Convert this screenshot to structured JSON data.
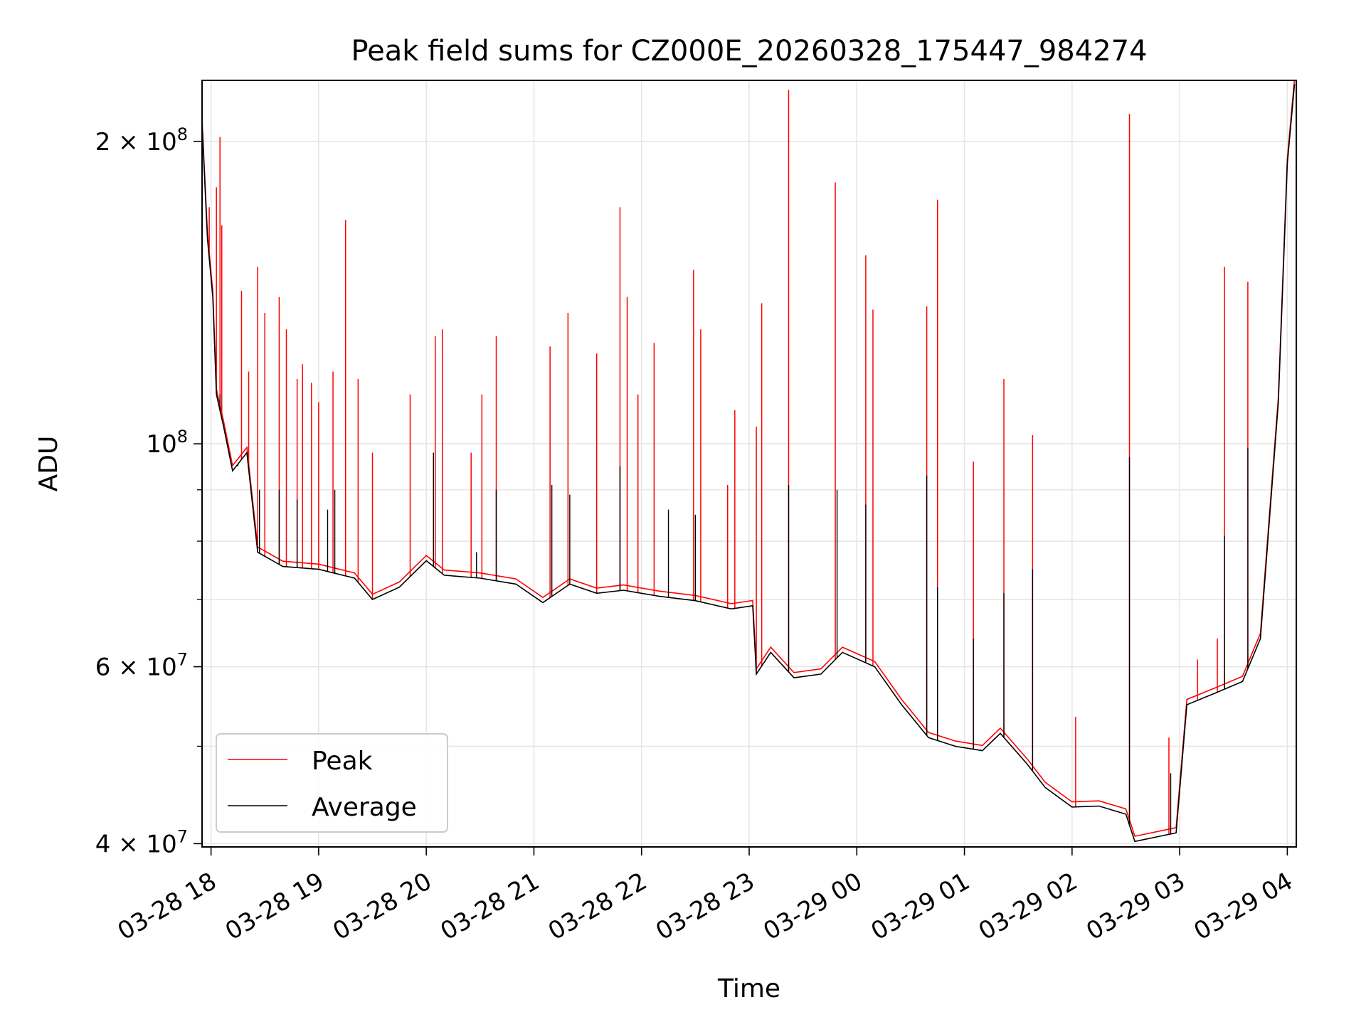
{
  "chart_data": {
    "type": "line",
    "title": "Peak field sums for CZ000E_20260328_175447_984274",
    "xlabel": "Time",
    "ylabel": "ADU",
    "y_scale": "log",
    "ylim": [
      39700000,
      230000000
    ],
    "xlim": [
      "2026-03-28T17:55:00",
      "2026-03-29T04:05:00"
    ],
    "x_ticks": [
      {
        "t": "2026-03-28T18:00",
        "label": "03-28 18"
      },
      {
        "t": "2026-03-28T19:00",
        "label": "03-28 19"
      },
      {
        "t": "2026-03-28T20:00",
        "label": "03-28 20"
      },
      {
        "t": "2026-03-28T21:00",
        "label": "03-28 21"
      },
      {
        "t": "2026-03-28T22:00",
        "label": "03-28 22"
      },
      {
        "t": "2026-03-28T23:00",
        "label": "03-28 23"
      },
      {
        "t": "2026-03-29T00:00",
        "label": "03-29 00"
      },
      {
        "t": "2026-03-29T01:00",
        "label": "03-29 01"
      },
      {
        "t": "2026-03-29T02:00",
        "label": "03-29 02"
      },
      {
        "t": "2026-03-29T03:00",
        "label": "03-29 03"
      },
      {
        "t": "2026-03-29T04:00",
        "label": "03-29 04"
      }
    ],
    "y_ticks": [
      {
        "value": 40000000,
        "base": "4 × 10",
        "exp": "7"
      },
      {
        "value": 60000000,
        "base": "6 × 10",
        "exp": "7"
      },
      {
        "value": 100000000,
        "base": "10",
        "exp": "8"
      },
      {
        "value": 200000000,
        "base": "2 × 10",
        "exp": "8"
      }
    ],
    "y_minor_ticks": [
      50000000,
      70000000,
      80000000,
      90000000
    ],
    "grid": true,
    "legend_position": "lower-left",
    "series": [
      {
        "name": "Average",
        "color": "#000000",
        "points": [
          [
            "2026-03-28T17:55",
            208000000
          ],
          [
            "2026-03-28T17:58",
            160000000
          ],
          [
            "2026-03-28T18:01",
            140000000
          ],
          [
            "2026-03-28T18:03",
            112000000
          ],
          [
            "2026-03-28T18:07",
            104000000
          ],
          [
            "2026-03-28T18:12",
            94000000
          ],
          [
            "2026-03-28T18:20",
            98000000
          ],
          [
            "2026-03-28T18:26",
            78000000
          ],
          [
            "2026-03-28T18:40",
            75500000
          ],
          [
            "2026-03-28T19:00",
            75000000
          ],
          [
            "2026-03-28T19:20",
            73500000
          ],
          [
            "2026-03-28T19:30",
            70000000
          ],
          [
            "2026-03-28T19:45",
            72000000
          ],
          [
            "2026-03-28T20:00",
            76500000
          ],
          [
            "2026-03-28T20:10",
            74000000
          ],
          [
            "2026-03-28T20:30",
            73500000
          ],
          [
            "2026-03-28T20:50",
            72500000
          ],
          [
            "2026-03-28T21:05",
            69500000
          ],
          [
            "2026-03-28T21:20",
            72500000
          ],
          [
            "2026-03-28T21:35",
            71000000
          ],
          [
            "2026-03-28T21:50",
            71500000
          ],
          [
            "2026-03-28T22:10",
            70500000
          ],
          [
            "2026-03-28T22:30",
            69800000
          ],
          [
            "2026-03-28T22:50",
            68500000
          ],
          [
            "2026-03-28T23:02",
            69000000
          ],
          [
            "2026-03-28T23:04",
            59000000
          ],
          [
            "2026-03-28T23:12",
            62000000
          ],
          [
            "2026-03-28T23:25",
            58500000
          ],
          [
            "2026-03-28T23:40",
            59000000
          ],
          [
            "2026-03-28T23:52",
            62000000
          ],
          [
            "2026-03-29T00:10",
            60000000
          ],
          [
            "2026-03-29T00:25",
            55000000
          ],
          [
            "2026-03-29T00:40",
            51000000
          ],
          [
            "2026-03-29T00:55",
            50000000
          ],
          [
            "2026-03-29T01:10",
            49500000
          ],
          [
            "2026-03-29T01:20",
            51500000
          ],
          [
            "2026-03-29T01:35",
            48000000
          ],
          [
            "2026-03-29T01:45",
            45500000
          ],
          [
            "2026-03-29T02:00",
            43500000
          ],
          [
            "2026-03-29T02:15",
            43600000
          ],
          [
            "2026-03-29T02:30",
            42800000
          ],
          [
            "2026-03-29T02:35",
            40200000
          ],
          [
            "2026-03-29T02:58",
            41000000
          ],
          [
            "2026-03-29T03:04",
            55000000
          ],
          [
            "2026-03-29T03:20",
            56500000
          ],
          [
            "2026-03-29T03:35",
            58000000
          ],
          [
            "2026-03-29T03:45",
            64000000
          ],
          [
            "2026-03-29T03:55",
            110000000
          ],
          [
            "2026-03-29T04:00",
            190000000
          ],
          [
            "2026-03-29T04:04",
            228000000
          ]
        ],
        "spikes": [
          [
            "2026-03-28T18:05",
            112000000
          ],
          [
            "2026-03-28T18:15",
            95000000
          ],
          [
            "2026-03-28T18:27",
            90000000
          ],
          [
            "2026-03-28T18:38",
            90000000
          ],
          [
            "2026-03-28T18:48",
            88000000
          ],
          [
            "2026-03-28T19:05",
            86000000
          ],
          [
            "2026-03-28T19:09",
            90000000
          ],
          [
            "2026-03-28T20:04",
            98000000
          ],
          [
            "2026-03-28T20:28",
            78000000
          ],
          [
            "2026-03-28T20:39",
            90000000
          ],
          [
            "2026-03-28T21:10",
            91000000
          ],
          [
            "2026-03-28T21:20",
            89000000
          ],
          [
            "2026-03-28T21:48",
            95000000
          ],
          [
            "2026-03-28T22:15",
            86000000
          ],
          [
            "2026-03-28T22:30",
            85000000
          ],
          [
            "2026-03-28T23:22",
            91000000
          ],
          [
            "2026-03-28T23:49",
            90000000
          ],
          [
            "2026-03-29T00:05",
            87000000
          ],
          [
            "2026-03-29T00:39",
            93000000
          ],
          [
            "2026-03-29T00:45",
            72000000
          ],
          [
            "2026-03-29T01:05",
            64000000
          ],
          [
            "2026-03-29T01:22",
            71000000
          ],
          [
            "2026-03-29T01:38",
            75000000
          ],
          [
            "2026-03-29T02:32",
            97000000
          ],
          [
            "2026-03-29T02:55",
            47000000
          ],
          [
            "2026-03-29T03:25",
            81000000
          ],
          [
            "2026-03-29T03:38",
            99000000
          ]
        ]
      },
      {
        "name": "Peak",
        "color": "#ff0000",
        "spikes": [
          [
            "2026-03-28T17:59",
            172000000
          ],
          [
            "2026-03-28T18:03",
            180000000
          ],
          [
            "2026-03-28T18:05",
            202000000
          ],
          [
            "2026-03-28T18:06",
            165000000
          ],
          [
            "2026-03-28T18:17",
            142000000
          ],
          [
            "2026-03-28T18:21",
            118000000
          ],
          [
            "2026-03-28T18:26",
            150000000
          ],
          [
            "2026-03-28T18:30",
            135000000
          ],
          [
            "2026-03-28T18:38",
            140000000
          ],
          [
            "2026-03-28T18:42",
            130000000
          ],
          [
            "2026-03-28T18:48",
            116000000
          ],
          [
            "2026-03-28T18:51",
            120000000
          ],
          [
            "2026-03-28T18:56",
            115000000
          ],
          [
            "2026-03-28T19:00",
            110000000
          ],
          [
            "2026-03-28T19:08",
            118000000
          ],
          [
            "2026-03-28T19:15",
            167000000
          ],
          [
            "2026-03-28T19:22",
            116000000
          ],
          [
            "2026-03-28T19:30",
            98000000
          ],
          [
            "2026-03-28T19:51",
            112000000
          ],
          [
            "2026-03-28T20:05",
            128000000
          ],
          [
            "2026-03-28T20:09",
            130000000
          ],
          [
            "2026-03-28T20:25",
            98000000
          ],
          [
            "2026-03-28T20:31",
            112000000
          ],
          [
            "2026-03-28T20:39",
            128000000
          ],
          [
            "2026-03-28T21:09",
            125000000
          ],
          [
            "2026-03-28T21:19",
            135000000
          ],
          [
            "2026-03-28T21:35",
            123000000
          ],
          [
            "2026-03-28T21:48",
            172000000
          ],
          [
            "2026-03-28T21:52",
            140000000
          ],
          [
            "2026-03-28T21:58",
            112000000
          ],
          [
            "2026-03-28T22:07",
            126000000
          ],
          [
            "2026-03-28T22:29",
            149000000
          ],
          [
            "2026-03-28T22:33",
            130000000
          ],
          [
            "2026-03-28T22:48",
            91000000
          ],
          [
            "2026-03-28T22:52",
            108000000
          ],
          [
            "2026-03-28T23:04",
            104000000
          ],
          [
            "2026-03-28T23:07",
            138000000
          ],
          [
            "2026-03-28T23:22",
            225000000
          ],
          [
            "2026-03-28T23:48",
            182000000
          ],
          [
            "2026-03-29T00:05",
            154000000
          ],
          [
            "2026-03-29T00:09",
            136000000
          ],
          [
            "2026-03-29T00:39",
            137000000
          ],
          [
            "2026-03-29T00:45",
            175000000
          ],
          [
            "2026-03-29T01:05",
            96000000
          ],
          [
            "2026-03-29T01:22",
            116000000
          ],
          [
            "2026-03-29T01:38",
            102000000
          ],
          [
            "2026-03-29T02:02",
            53500000
          ],
          [
            "2026-03-29T02:32",
            213000000
          ],
          [
            "2026-03-29T02:54",
            51000000
          ],
          [
            "2026-03-29T03:10",
            61000000
          ],
          [
            "2026-03-29T03:21",
            64000000
          ],
          [
            "2026-03-29T03:25",
            150000000
          ],
          [
            "2026-03-29T03:38",
            145000000
          ]
        ]
      }
    ]
  }
}
